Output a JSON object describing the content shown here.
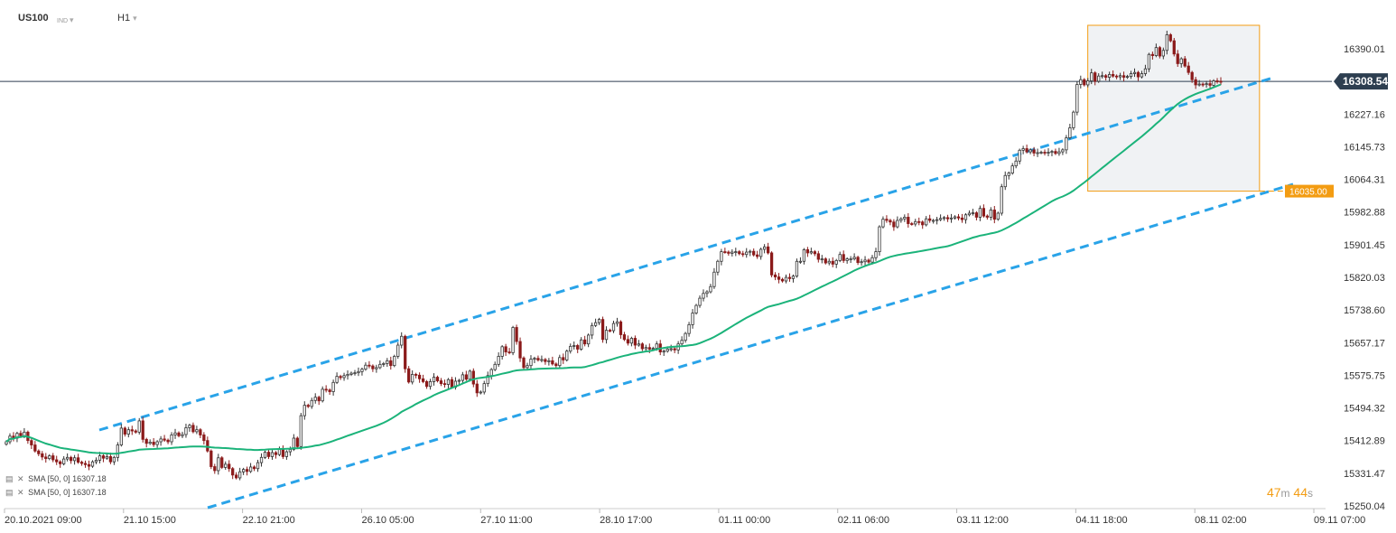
{
  "header": {
    "symbol": "US100",
    "exchange": "IND",
    "timeframe": "H1",
    "caret": "▾"
  },
  "indicators": [
    {
      "label": "SMA  [50,  0]  16307.18"
    },
    {
      "label": "SMA  [50,  0]  16307.18"
    }
  ],
  "timer": {
    "minutes": "47",
    "m_unit": "m",
    "seconds": "44",
    "s_unit": "s"
  },
  "colors": {
    "bull": "#333333",
    "bear": "#8b1a1a",
    "sma": "#1bb37a",
    "channel": "#29a3e8",
    "zone_border": "#f39c12",
    "zone_fill": "#f0f2f4",
    "price_line": "#2d3e50",
    "price_tag": "#2d3e50",
    "level_tag": "#f39c12"
  },
  "chart_data": {
    "type": "candlestick",
    "symbol": "US100",
    "timeframe": "H1",
    "x_labels": [
      "20.10.2021   09:00",
      "21.10   15:00",
      "22.10   21:00",
      "26.10   05:00",
      "27.10   11:00",
      "28.10   17:00",
      "01.11   00:00",
      "02.11   06:00",
      "03.11   12:00",
      "04.11   18:00",
      "08.11   02:00",
      "09.11   07:00"
    ],
    "y_ticks": [
      16390.01,
      16227.16,
      16145.73,
      16064.31,
      15982.88,
      15901.45,
      15820.03,
      15738.6,
      15657.17,
      15575.75,
      15494.32,
      15412.89,
      15331.47,
      15250.04
    ],
    "ylim": [
      15250.04,
      16390.01
    ],
    "last_price": "16308.54",
    "sma_period": 50,
    "sma_value": 16307.18,
    "level": {
      "label": "16035.00",
      "value": 16035.0
    },
    "channel_upper": [
      {
        "x": 0.084,
        "y": 15494.32
      },
      {
        "x": 1.0,
        "y": 16308.54
      }
    ],
    "channel_lower": [
      {
        "x": 0.166,
        "y": 15250.04
      },
      {
        "x": 1.0,
        "y": 16035.0
      }
    ],
    "highlight_zone": {
      "x_from": 0.82,
      "x_to": 0.95,
      "y_from": 16035.0,
      "y_to": 16390.01
    },
    "candles": [
      15410,
      15424,
      15419,
      15431,
      15425,
      15434,
      15413,
      15402,
      15387,
      15380,
      15372,
      15368,
      15375,
      15365,
      15360,
      15355,
      15367,
      15371,
      15363,
      15370,
      15359,
      15356,
      15353,
      15349,
      15360,
      15364,
      15375,
      15369,
      15373,
      15360,
      15371,
      15402,
      15444,
      15429,
      15440,
      15437,
      15434,
      15462,
      15416,
      15406,
      15409,
      15403,
      15410,
      15417,
      15414,
      15410,
      15427,
      15432,
      15425,
      15428,
      15445,
      15451,
      15435,
      15440,
      15427,
      15413,
      15387,
      15348,
      15338,
      15370,
      15346,
      15354,
      15343,
      15327,
      15320,
      15335,
      15341,
      15336,
      15347,
      15343,
      15358,
      15371,
      15384,
      15373,
      15383,
      15378,
      15391,
      15373,
      15385,
      15391,
      15419,
      15398,
      15475,
      15501,
      15498,
      15513,
      15521,
      15512,
      15541,
      15539,
      15535,
      15558,
      15573,
      15570,
      15575,
      15578,
      15581,
      15582,
      15585,
      15591,
      15601,
      15599,
      15592,
      15595,
      15603,
      15605,
      15612,
      15600,
      15623,
      15651,
      15673,
      15592,
      15559,
      15578,
      15576,
      15567,
      15560,
      15548,
      15560,
      15571,
      15562,
      15555,
      15553,
      15565,
      15546,
      15561,
      15563,
      15577,
      15566,
      15586,
      15554,
      15532,
      15534,
      15555,
      15575,
      15590,
      15603,
      15623,
      15647,
      15634,
      15632,
      15695,
      15660,
      15619,
      15595,
      15600,
      15616,
      15618,
      15614,
      15615,
      15610,
      15612,
      15604,
      15600,
      15620,
      15614,
      15636,
      15648,
      15650,
      15641,
      15664,
      15654,
      15676,
      15700,
      15707,
      15715,
      15665,
      15688,
      15687,
      15705,
      15709,
      15677,
      15665,
      15656,
      15668,
      15651,
      15654,
      15642,
      15645,
      15641,
      15643,
      15654,
      15634,
      15636,
      15641,
      15642,
      15639,
      15654,
      15663,
      15680,
      15702,
      15731,
      15750,
      15768,
      15780,
      15784,
      15797,
      15833,
      15860,
      15884,
      15883,
      15880,
      15883,
      15884,
      15879,
      15877,
      15883,
      15885,
      15876,
      15872,
      15890,
      15896,
      15881,
      15826,
      15821,
      15815,
      15811,
      15820,
      15817,
      15823,
      15860,
      15860,
      15889,
      15881,
      15884,
      15879,
      15865,
      15866,
      15856,
      15860,
      15853,
      15862,
      15877,
      15862,
      15866,
      15866,
      15870,
      15857,
      15859,
      15863,
      15858,
      15869,
      15884,
      15946,
      15965,
      15962,
      15958,
      15946,
      15962,
      15966,
      15970,
      15954,
      15953,
      15959,
      15958,
      15951,
      15966,
      15962,
      15962,
      15964,
      15967,
      15969,
      15966,
      15968,
      15971,
      15968,
      15964,
      15976,
      15980,
      15981,
      15970,
      15992,
      15973,
      15970,
      15988,
      15965,
      15980,
      16046,
      16074,
      16080,
      16098,
      16110,
      16137,
      16141,
      16133,
      16138,
      16130,
      16131,
      16132,
      16130,
      16132,
      16134,
      16129,
      16133,
      16138,
      16168,
      16193,
      16232,
      16301,
      16313,
      16300,
      16310,
      16330,
      16309,
      16322,
      16323,
      16319,
      16326,
      16322,
      16320,
      16323,
      16319,
      16321,
      16328,
      16331,
      16320,
      16328,
      16340,
      16376,
      16373,
      16393,
      16372,
      16386,
      16425,
      16410,
      16377,
      16353,
      16365,
      16347,
      16331,
      16313,
      16300,
      16302,
      16301,
      16303,
      16299,
      16310,
      16309,
      16308
    ]
  }
}
